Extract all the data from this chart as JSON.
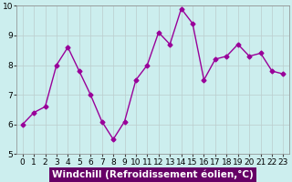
{
  "x": [
    0,
    1,
    2,
    3,
    4,
    5,
    6,
    7,
    8,
    9,
    10,
    11,
    12,
    13,
    14,
    15,
    16,
    17,
    18,
    19,
    20,
    21,
    22,
    23
  ],
  "y": [
    6.0,
    6.4,
    6.6,
    8.0,
    8.6,
    7.8,
    7.0,
    6.1,
    5.5,
    6.1,
    7.5,
    8.0,
    9.1,
    8.7,
    9.9,
    9.4,
    7.5,
    8.2,
    8.3,
    8.7,
    8.3,
    8.4,
    7.8,
    7.7
  ],
  "line_color": "#990099",
  "marker": "D",
  "markersize": 2.5,
  "linewidth": 1,
  "xlabel": "Windchill (Refroidissement éolien,°C)",
  "xlabel_fontsize": 7.5,
  "ylim": [
    5,
    10
  ],
  "xlim": [
    -0.5,
    23.5
  ],
  "yticks": [
    5,
    6,
    7,
    8,
    9,
    10
  ],
  "xticks": [
    0,
    1,
    2,
    3,
    4,
    5,
    6,
    7,
    8,
    9,
    10,
    11,
    12,
    13,
    14,
    15,
    16,
    17,
    18,
    19,
    20,
    21,
    22,
    23
  ],
  "bg_color": "#cceeee",
  "plot_bg_color": "#cceeee",
  "grid_color": "#bbcccc",
  "tick_fontsize": 6.5,
  "xlabel_bg": "#660066",
  "xlabel_color": "white"
}
